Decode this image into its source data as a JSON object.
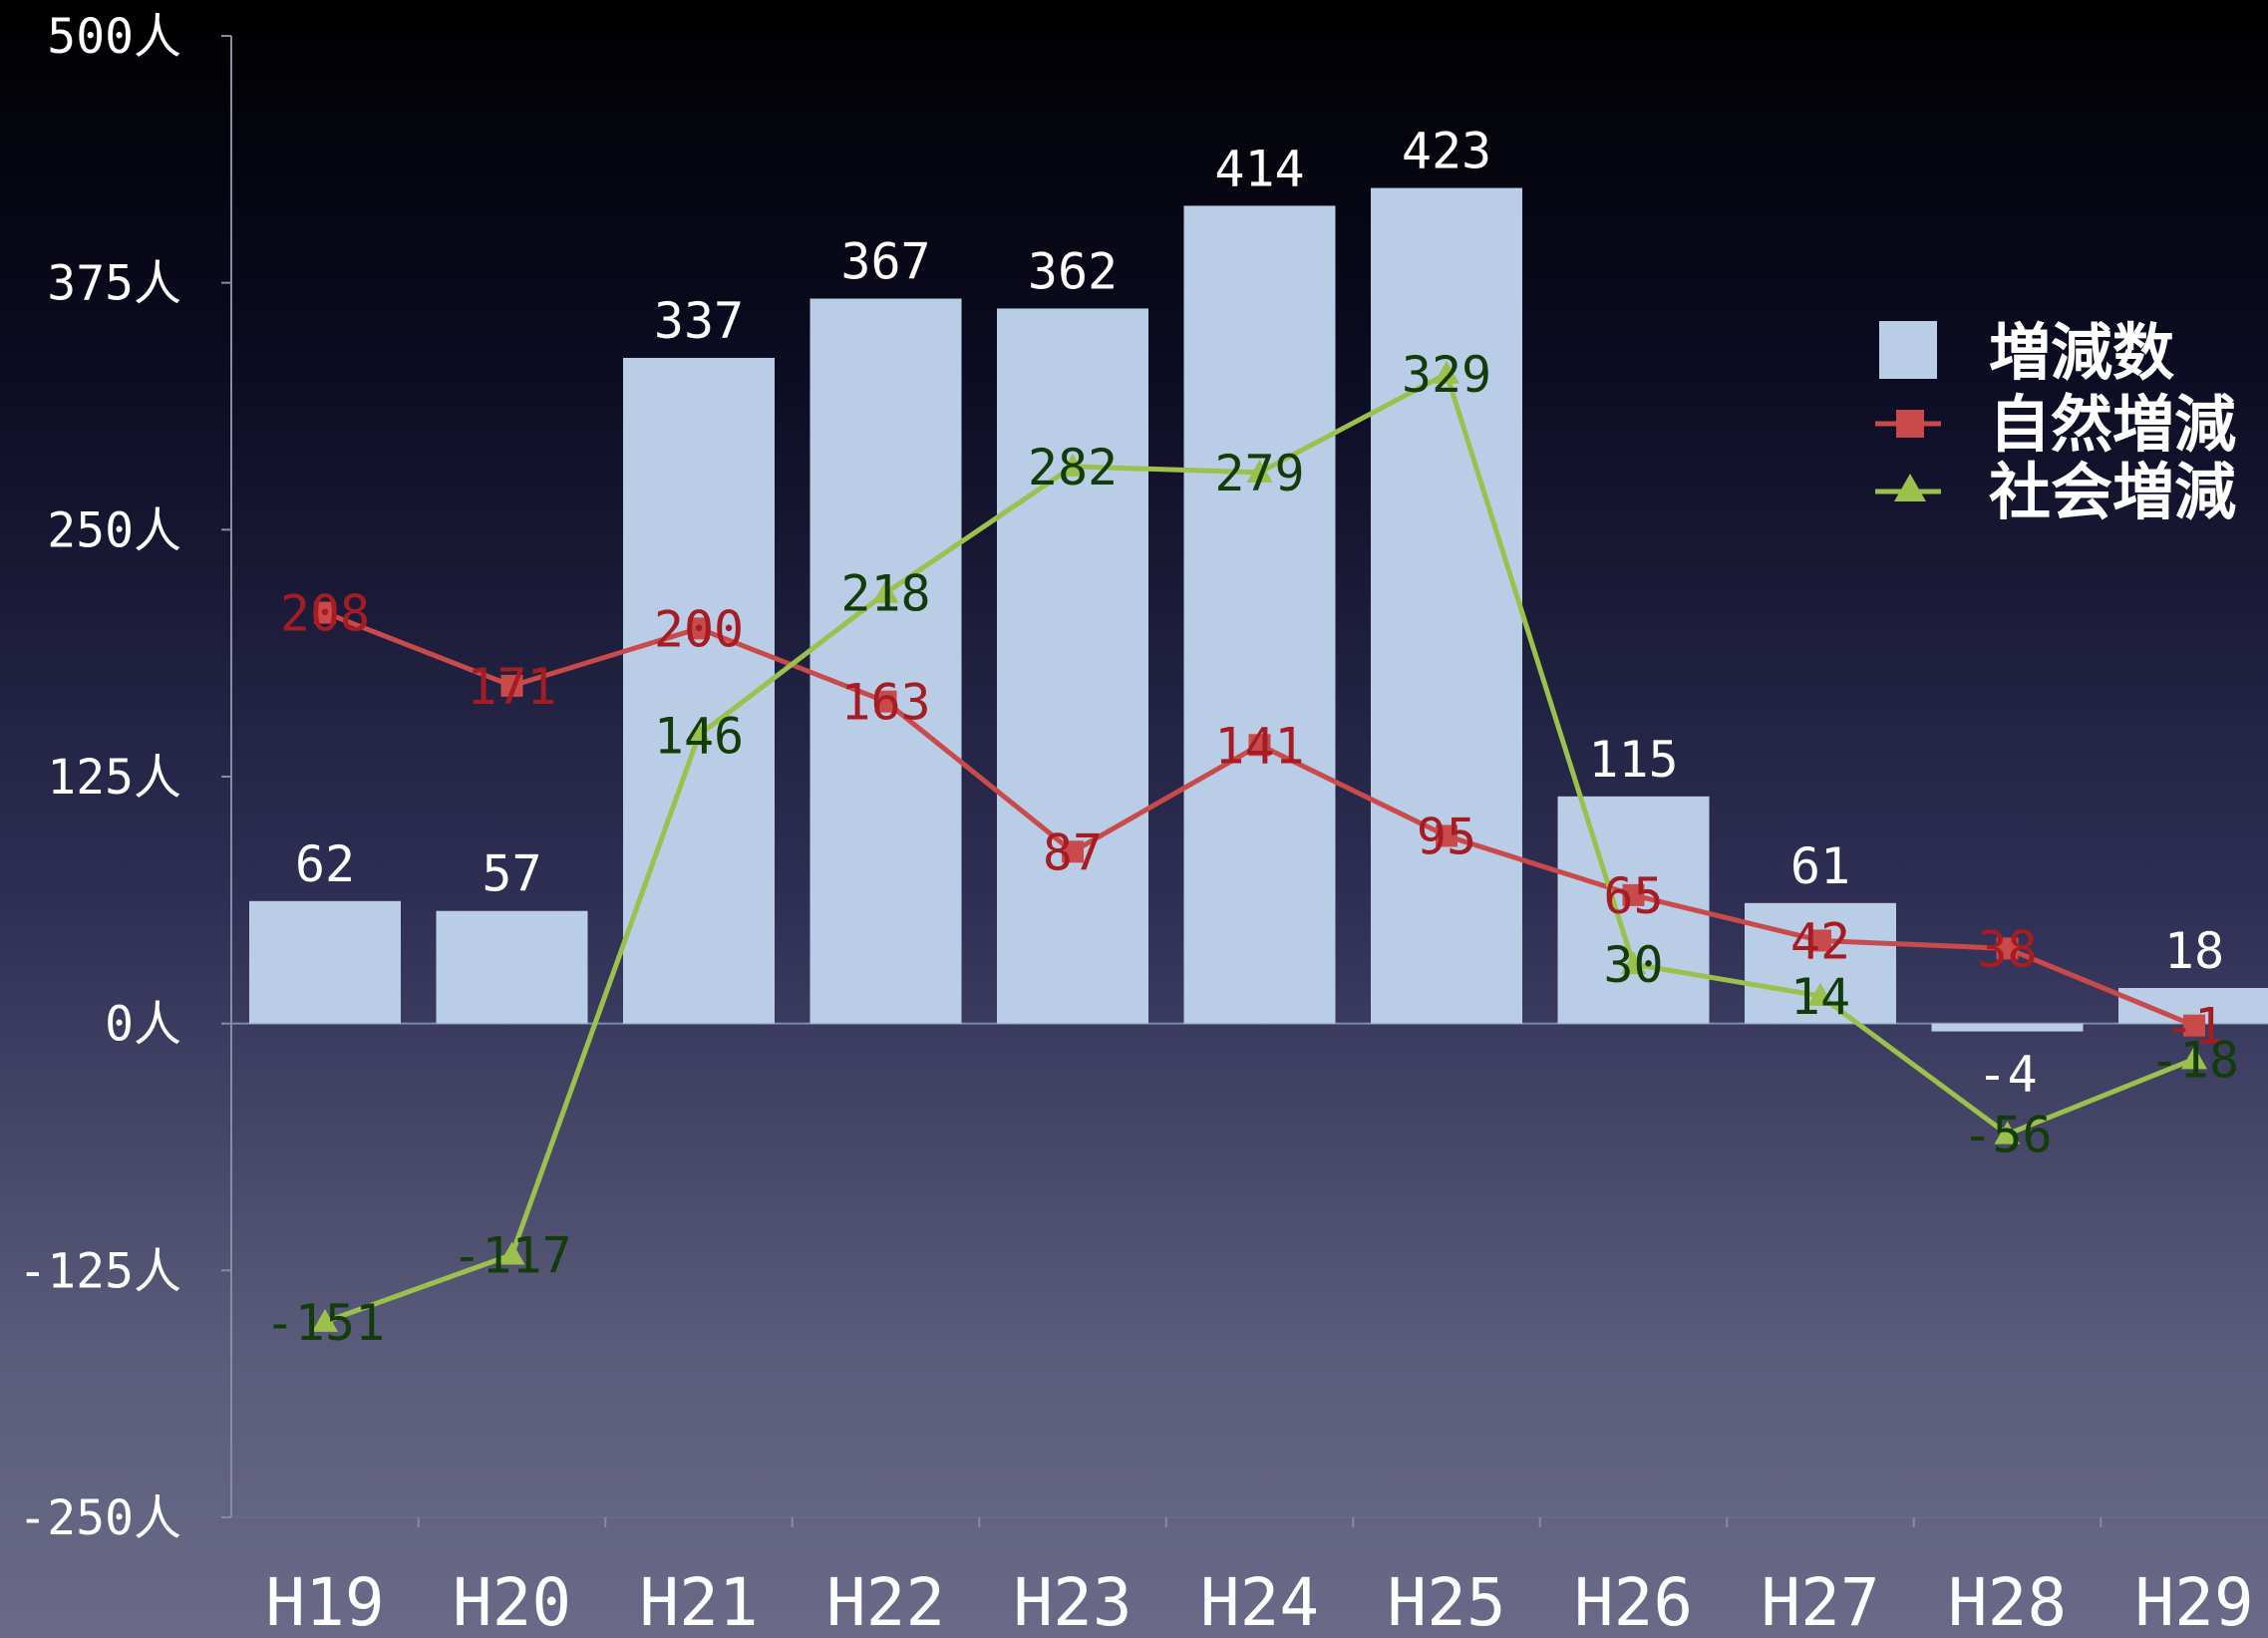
{
  "chart_data": {
    "type": "bar",
    "categories": [
      "H19",
      "H20",
      "H21",
      "H22",
      "H23",
      "H24",
      "H25",
      "H26",
      "H27",
      "H28",
      "H29"
    ],
    "y_ticks": [
      "500人",
      "375人",
      "250人",
      "125人",
      "0人",
      "-125人",
      "-250人"
    ],
    "ylim": [
      -250,
      500
    ],
    "series": [
      {
        "name": "増減数",
        "kind": "bar",
        "color": "#b9cde6",
        "values": [
          62,
          57,
          337,
          367,
          362,
          414,
          423,
          115,
          61,
          -4,
          18
        ]
      },
      {
        "name": "自然増減",
        "kind": "line",
        "marker": "square",
        "color": "#c94a4a",
        "label_color": "#a51d22",
        "values": [
          208,
          171,
          200,
          163,
          87,
          141,
          95,
          65,
          42,
          38,
          -1
        ]
      },
      {
        "name": "社会増減",
        "kind": "line",
        "marker": "triangle",
        "color": "#9bc04c",
        "label_color": "#123d0b",
        "values": [
          -151,
          -117,
          146,
          218,
          282,
          279,
          329,
          30,
          14,
          -56,
          -18
        ]
      }
    ],
    "legend": "top-right",
    "grid": false
  }
}
